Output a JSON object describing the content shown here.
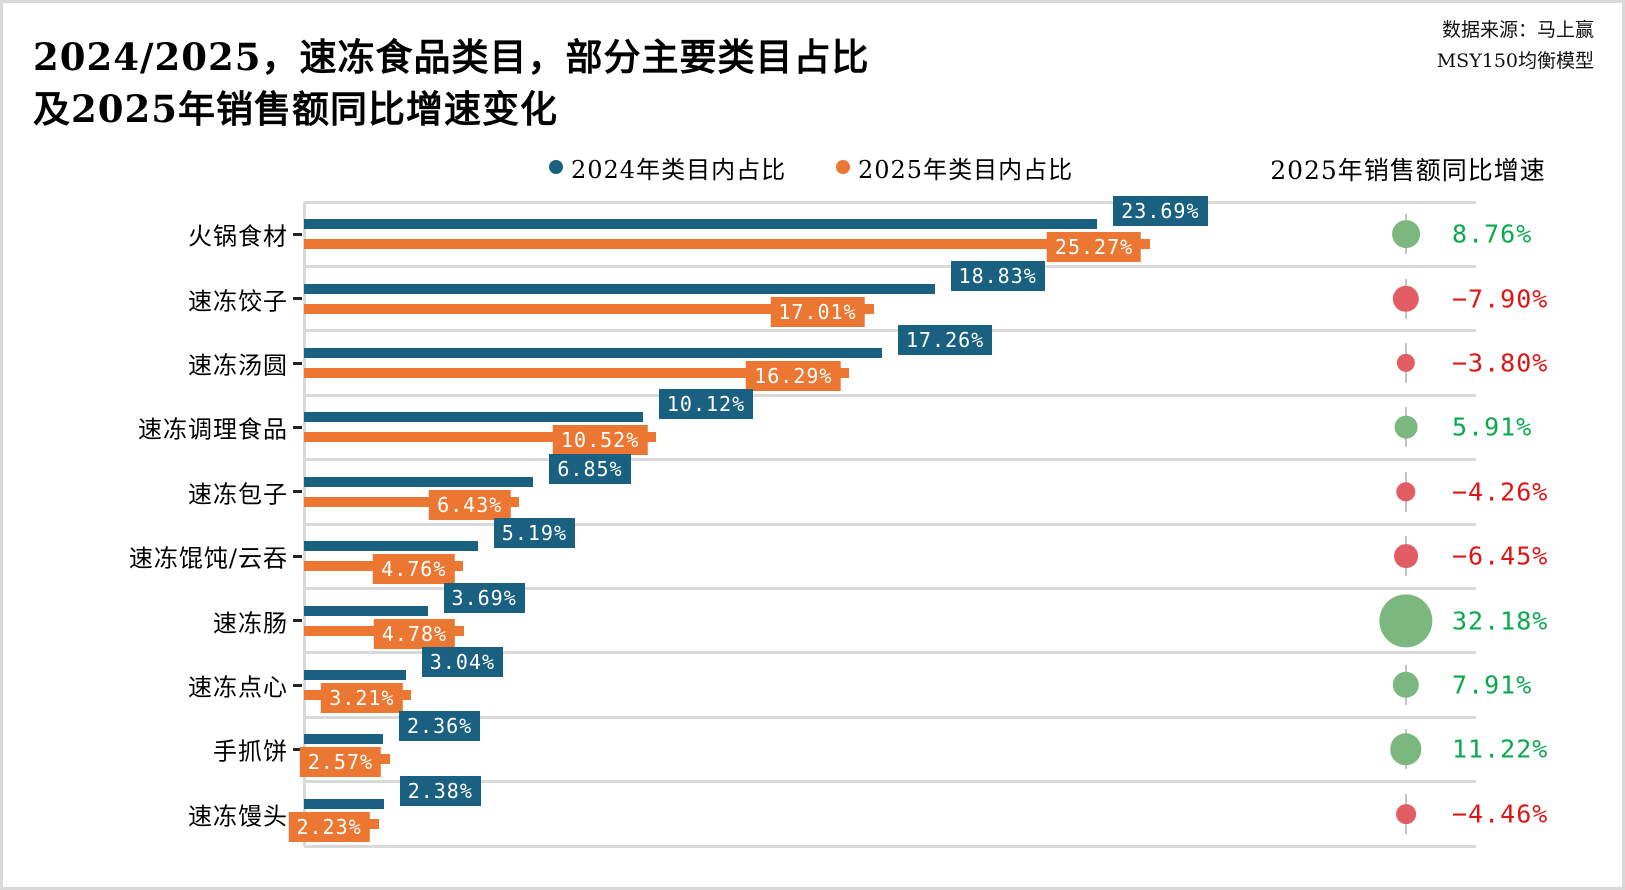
{
  "title": {
    "line1": "2024/2025，速冻食品类目，部分主要类目占比",
    "line2": "及2025年销售额同比增速变化"
  },
  "source": {
    "line1": "数据来源：马上赢",
    "line2": "MSY150均衡模型"
  },
  "legend": {
    "items": [
      {
        "label": "2024年类目内占比",
        "color": "#1a6080"
      },
      {
        "label": "2025年类目内占比",
        "color": "#ec7733"
      }
    ]
  },
  "growth_header": "2025年销售额同比增速",
  "colors": {
    "bar_2024": "#1a6080",
    "bar_2025": "#ec7733",
    "label_box_2024": "#1a6080",
    "label_box_2025": "#ec7733",
    "gridline": "#d9d9d9",
    "dot_positive": "#7cb77f",
    "dot_negative": "#e15d63",
    "text_positive": "#0ba94e",
    "text_negative": "#e01414"
  },
  "chart_data": {
    "type": "bar",
    "orientation": "horizontal",
    "categories": [
      "火锅食材",
      "速冻饺子",
      "速冻汤圆",
      "速冻调理食品",
      "速冻包子",
      "速冻馄饨/云吞",
      "速冻肠",
      "速冻点心",
      "手抓饼",
      "速冻馒头"
    ],
    "series": [
      {
        "name": "2024年类目内占比",
        "values": [
          23.69,
          18.83,
          17.26,
          10.12,
          6.85,
          5.19,
          3.69,
          3.04,
          2.36,
          2.38
        ]
      },
      {
        "name": "2025年类目内占比",
        "values": [
          25.27,
          17.01,
          16.29,
          10.52,
          6.43,
          4.76,
          4.78,
          3.21,
          2.57,
          2.23
        ]
      }
    ],
    "growth_series": {
      "name": "2025年销售额同比增速",
      "values": [
        8.76,
        -7.9,
        -3.8,
        5.91,
        -4.26,
        -6.45,
        32.18,
        7.91,
        11.22,
        -4.46
      ]
    },
    "xlim": [
      0,
      35
    ],
    "grid": "row-separators-only",
    "legend_position": "top-center",
    "value_labels": "on-bar-ends"
  }
}
